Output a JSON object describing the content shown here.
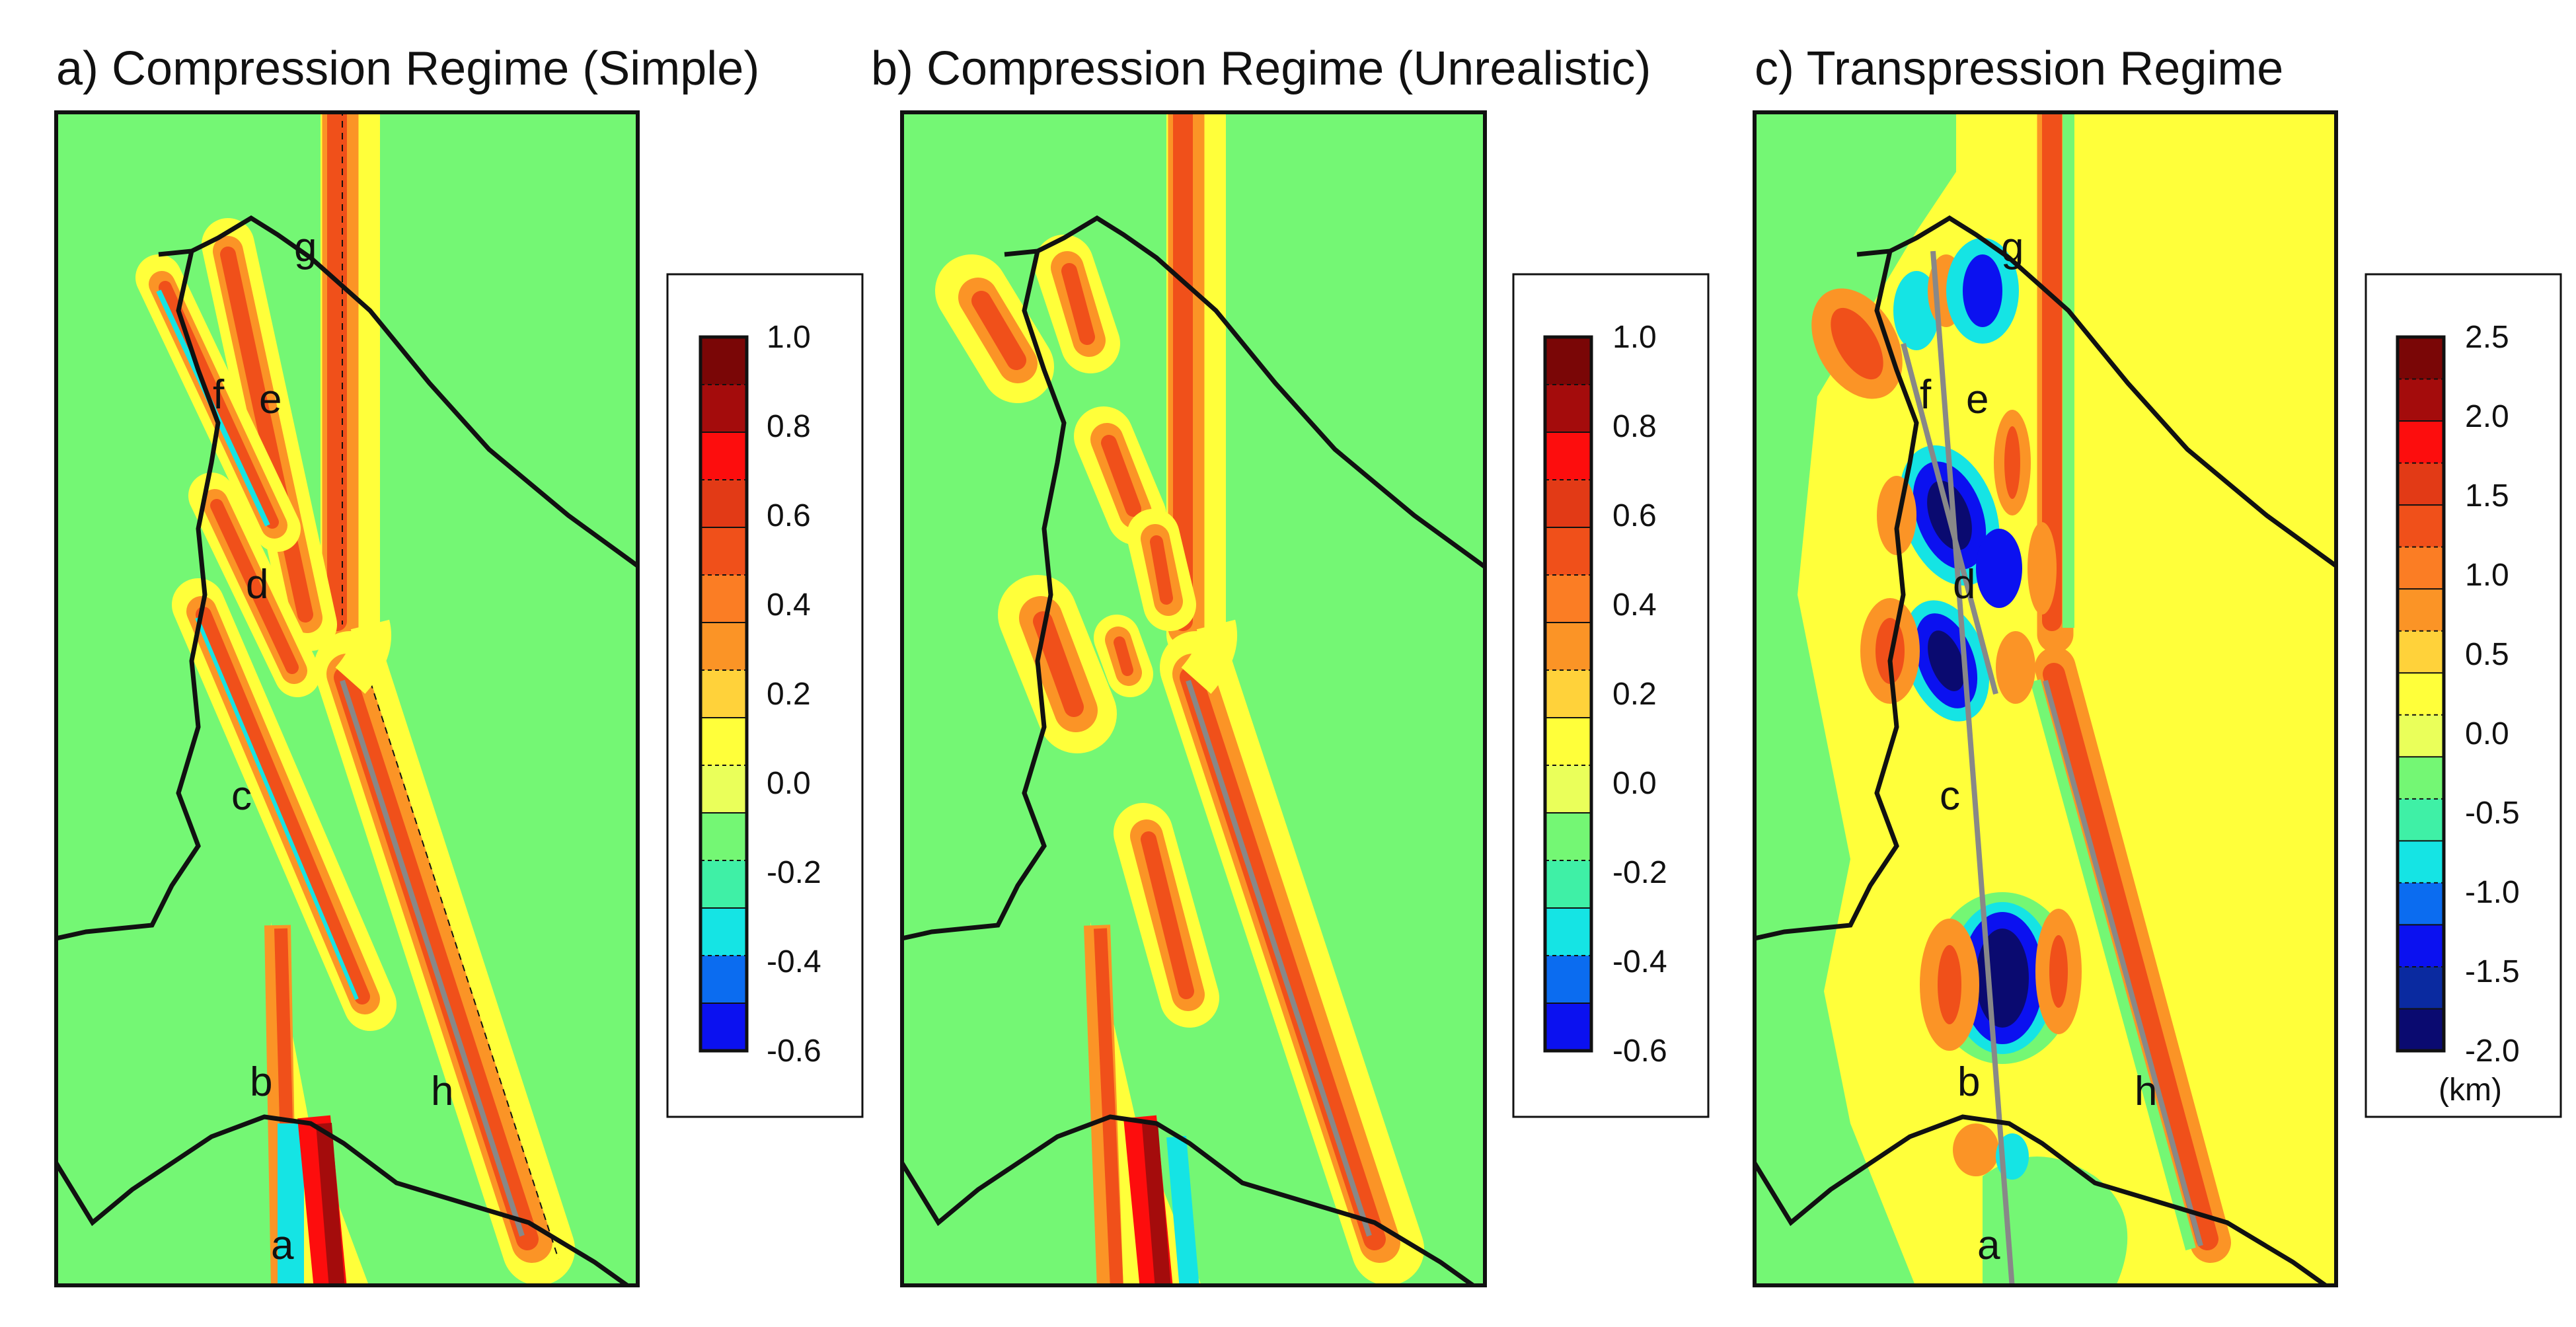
{
  "colors": {
    "green": "#74f774",
    "yellow": "#ffff3a",
    "orange": "#fb9426",
    "red_orange": "#f0501a",
    "red": "#fd0d0d",
    "dark_red": "#a40c0c",
    "darker_red": "#7a0606",
    "cyan": "#15e4e4",
    "blue": "#0b11f0",
    "navy": "#0a0a70",
    "coast": "#111111",
    "fault_trace": "#888888"
  },
  "panels": [
    {
      "id": "a",
      "title": "a) Compression Regime (Simple)",
      "fault_labels": [
        "g",
        "f",
        "e",
        "d",
        "c",
        "b",
        "h",
        "a"
      ],
      "colorbar": {
        "ticks": [
          "1.0",
          "0.8",
          "0.6",
          "0.4",
          "0.2",
          "0.0",
          "-0.2",
          "-0.4",
          "-0.6"
        ],
        "colors": [
          "#7a0606",
          "#a40c0c",
          "#fd0d0d",
          "#e23a16",
          "#f0501a",
          "#fb7d24",
          "#fb9426",
          "#ffd23a",
          "#ffff3a",
          "#eaff5a",
          "#74f774",
          "#3ff0a6",
          "#15e4e4",
          "#0b6cf0",
          "#0b11f0"
        ],
        "unit": ""
      }
    },
    {
      "id": "b",
      "title": "b) Compression Regime (Unrealistic)",
      "fault_labels": [],
      "colorbar": {
        "ticks": [
          "1.0",
          "0.8",
          "0.6",
          "0.4",
          "0.2",
          "0.0",
          "-0.2",
          "-0.4",
          "-0.6"
        ],
        "colors": [
          "#7a0606",
          "#a40c0c",
          "#fd0d0d",
          "#e23a16",
          "#f0501a",
          "#fb7d24",
          "#fb9426",
          "#ffd23a",
          "#ffff3a",
          "#eaff5a",
          "#74f774",
          "#3ff0a6",
          "#15e4e4",
          "#0b6cf0",
          "#0b11f0"
        ],
        "unit": ""
      }
    },
    {
      "id": "c",
      "title": "c) Transpression Regime",
      "fault_labels": [
        "g",
        "f",
        "e",
        "d",
        "c",
        "b",
        "h",
        "a"
      ],
      "colorbar": {
        "ticks": [
          "2.5",
          "2.0",
          "1.5",
          "1.0",
          "0.5",
          "0.0",
          "-0.5",
          "-1.0",
          "-1.5",
          "-2.0"
        ],
        "colors": [
          "#7a0606",
          "#a40c0c",
          "#fd0d0d",
          "#e23a16",
          "#f0501a",
          "#fb7d24",
          "#fb9426",
          "#ffd23a",
          "#ffff3a",
          "#eaff5a",
          "#74f774",
          "#3ff0a6",
          "#15e4e4",
          "#0b6cf0",
          "#0b11f0",
          "#0a2aa0",
          "#0a0a70"
        ],
        "unit": "(km)"
      }
    }
  ]
}
